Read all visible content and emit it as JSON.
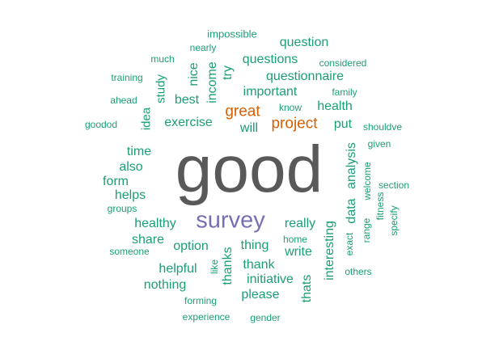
{
  "wordcloud": {
    "colors": {
      "teal": "#1b9e77",
      "orange": "#d95f02",
      "purple": "#7570b3",
      "gray": "#595959"
    },
    "words": [
      {
        "key": "impossible",
        "text": "impossible",
        "color": "teal",
        "vertical": false
      },
      {
        "key": "question",
        "text": "question",
        "color": "teal",
        "vertical": false
      },
      {
        "key": "nearly",
        "text": "nearly",
        "color": "teal",
        "vertical": false
      },
      {
        "key": "much",
        "text": "much",
        "color": "teal",
        "vertical": false
      },
      {
        "key": "questions",
        "text": "questions",
        "color": "teal",
        "vertical": false
      },
      {
        "key": "considered",
        "text": "considered",
        "color": "teal",
        "vertical": false
      },
      {
        "key": "nice",
        "text": "nice",
        "color": "teal",
        "vertical": true
      },
      {
        "key": "income",
        "text": "income",
        "color": "teal",
        "vertical": true
      },
      {
        "key": "try",
        "text": "try",
        "color": "teal",
        "vertical": true
      },
      {
        "key": "training",
        "text": "training",
        "color": "teal",
        "vertical": false
      },
      {
        "key": "questionnaire",
        "text": "questionnaire",
        "color": "teal",
        "vertical": false
      },
      {
        "key": "study",
        "text": "study",
        "color": "teal",
        "vertical": true
      },
      {
        "key": "important",
        "text": "important",
        "color": "teal",
        "vertical": false
      },
      {
        "key": "family",
        "text": "family",
        "color": "teal",
        "vertical": false
      },
      {
        "key": "ahead",
        "text": "ahead",
        "color": "teal",
        "vertical": false
      },
      {
        "key": "best",
        "text": "best",
        "color": "teal",
        "vertical": false
      },
      {
        "key": "know",
        "text": "know",
        "color": "teal",
        "vertical": false
      },
      {
        "key": "health",
        "text": "health",
        "color": "teal",
        "vertical": false
      },
      {
        "key": "great",
        "text": "great",
        "color": "orange",
        "vertical": false
      },
      {
        "key": "idea",
        "text": "idea",
        "color": "teal",
        "vertical": true
      },
      {
        "key": "goodod",
        "text": "goodod",
        "color": "teal",
        "vertical": false
      },
      {
        "key": "exercise",
        "text": "exercise",
        "color": "teal",
        "vertical": false
      },
      {
        "key": "project",
        "text": "project",
        "color": "orange",
        "vertical": false
      },
      {
        "key": "put",
        "text": "put",
        "color": "teal",
        "vertical": false
      },
      {
        "key": "shouldve",
        "text": "shouldve",
        "color": "teal",
        "vertical": false
      },
      {
        "key": "will",
        "text": "will",
        "color": "teal",
        "vertical": false
      },
      {
        "key": "given",
        "text": "given",
        "color": "teal",
        "vertical": false
      },
      {
        "key": "time",
        "text": "time",
        "color": "teal",
        "vertical": false
      },
      {
        "key": "analysis",
        "text": "analysis",
        "color": "teal",
        "vertical": true
      },
      {
        "key": "good",
        "text": "good",
        "color": "gray",
        "vertical": false
      },
      {
        "key": "also",
        "text": "also",
        "color": "teal",
        "vertical": false
      },
      {
        "key": "welcome",
        "text": "welcome",
        "color": "teal",
        "vertical": true
      },
      {
        "key": "form",
        "text": "form",
        "color": "teal",
        "vertical": false
      },
      {
        "key": "section",
        "text": "section",
        "color": "teal",
        "vertical": false
      },
      {
        "key": "helps",
        "text": "helps",
        "color": "teal",
        "vertical": false
      },
      {
        "key": "fitness",
        "text": "fitness",
        "color": "teal",
        "vertical": true
      },
      {
        "key": "groups",
        "text": "groups",
        "color": "teal",
        "vertical": false
      },
      {
        "key": "data",
        "text": "data",
        "color": "teal",
        "vertical": true
      },
      {
        "key": "specify",
        "text": "specify",
        "color": "teal",
        "vertical": true
      },
      {
        "key": "survey",
        "text": "survey",
        "color": "purple",
        "vertical": false
      },
      {
        "key": "healthy",
        "text": "healthy",
        "color": "teal",
        "vertical": false
      },
      {
        "key": "really",
        "text": "really",
        "color": "teal",
        "vertical": false
      },
      {
        "key": "range",
        "text": "range",
        "color": "teal",
        "vertical": true
      },
      {
        "key": "share",
        "text": "share",
        "color": "teal",
        "vertical": false
      },
      {
        "key": "home",
        "text": "home",
        "color": "teal",
        "vertical": false
      },
      {
        "key": "exact",
        "text": "exact",
        "color": "teal",
        "vertical": true
      },
      {
        "key": "option",
        "text": "option",
        "color": "teal",
        "vertical": false
      },
      {
        "key": "thing",
        "text": "thing",
        "color": "teal",
        "vertical": false
      },
      {
        "key": "interesting",
        "text": "interesting",
        "color": "teal",
        "vertical": true
      },
      {
        "key": "someone",
        "text": "someone",
        "color": "teal",
        "vertical": false
      },
      {
        "key": "write",
        "text": "write",
        "color": "teal",
        "vertical": false
      },
      {
        "key": "thanks",
        "text": "thanks",
        "color": "teal",
        "vertical": true
      },
      {
        "key": "like",
        "text": "like",
        "color": "teal",
        "vertical": true
      },
      {
        "key": "thank",
        "text": "thank",
        "color": "teal",
        "vertical": false
      },
      {
        "key": "helpful",
        "text": "helpful",
        "color": "teal",
        "vertical": false
      },
      {
        "key": "others",
        "text": "others",
        "color": "teal",
        "vertical": false
      },
      {
        "key": "initiative",
        "text": "initiative",
        "color": "teal",
        "vertical": false
      },
      {
        "key": "nothing",
        "text": "nothing",
        "color": "teal",
        "vertical": false
      },
      {
        "key": "thats",
        "text": "thats",
        "color": "teal",
        "vertical": true
      },
      {
        "key": "please",
        "text": "please",
        "color": "teal",
        "vertical": false
      },
      {
        "key": "forming",
        "text": "forming",
        "color": "teal",
        "vertical": false
      },
      {
        "key": "experience",
        "text": "experience",
        "color": "teal",
        "vertical": false
      },
      {
        "key": "gender",
        "text": "gender",
        "color": "teal",
        "vertical": false
      }
    ]
  }
}
